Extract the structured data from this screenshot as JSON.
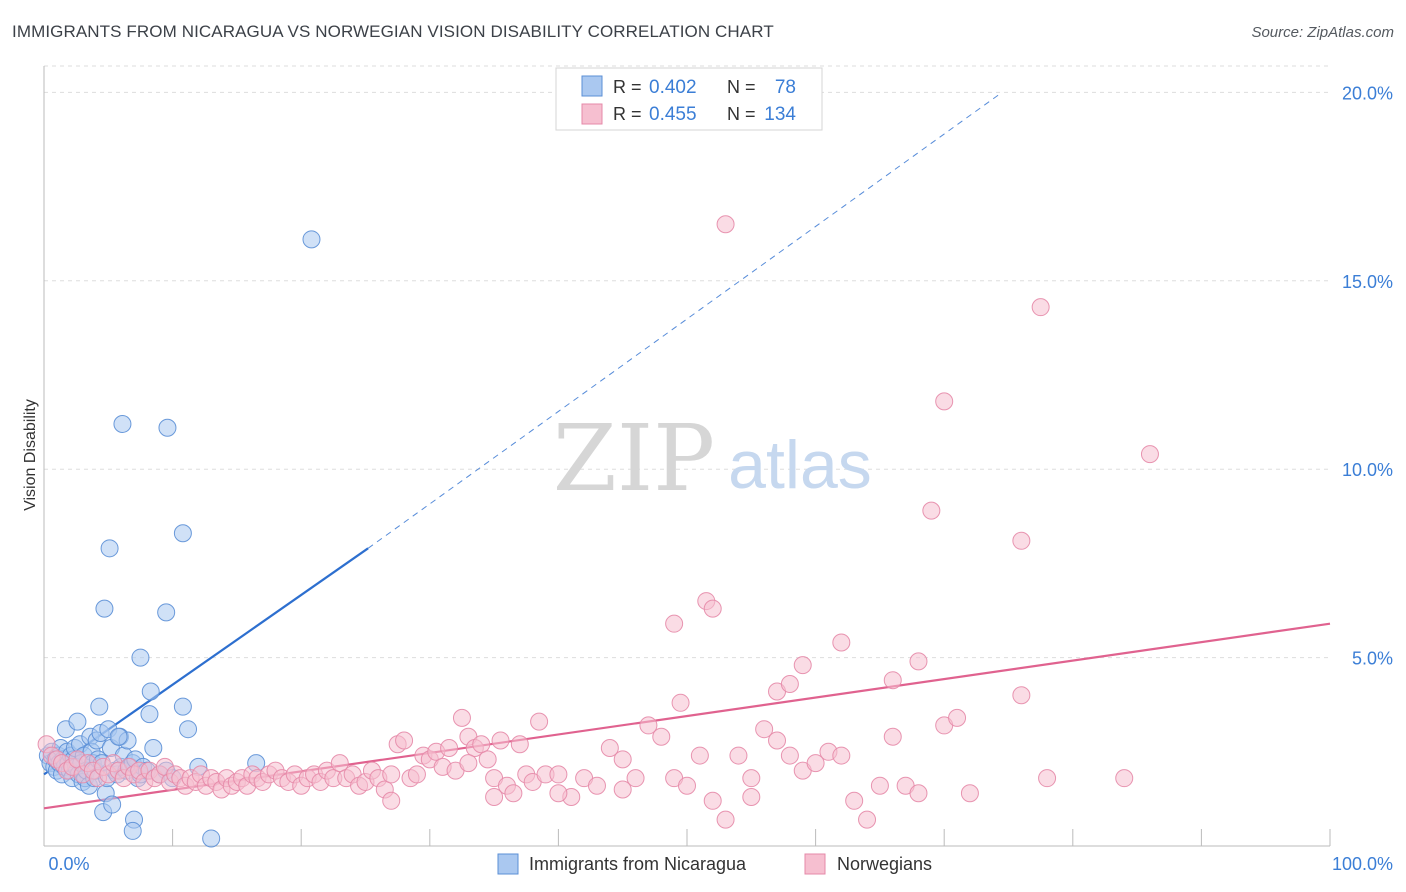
{
  "header": {
    "title": "IMMIGRANTS FROM NICARAGUA VS NORWEGIAN VISION DISABILITY CORRELATION CHART",
    "source": "Source: ZipAtlas.com"
  },
  "watermark": {
    "zip": "ZIP",
    "atlas": "atlas"
  },
  "colors": {
    "blue_fill": "#aac8f0",
    "blue_stroke": "#5b8fd6",
    "blue_line": "#2d6fcf",
    "pink_fill": "#f6bfd0",
    "pink_stroke": "#e589a8",
    "pink_line": "#e0628f",
    "axis_text": "#3b7ed6",
    "grid": "#dddddd"
  },
  "chart_data": {
    "type": "scatter",
    "xlabel": "",
    "ylabel": "Vision Disability",
    "xlim": [
      0,
      100
    ],
    "ylim": [
      0,
      20.7
    ],
    "x_tick_labels": [
      {
        "value": 0,
        "label": "0.0%"
      },
      {
        "value": 100,
        "label": "100.0%"
      }
    ],
    "y_tick_labels": [
      {
        "value": 5,
        "label": "5.0%"
      },
      {
        "value": 10,
        "label": "10.0%"
      },
      {
        "value": 15,
        "label": "15.0%"
      },
      {
        "value": 20,
        "label": "20.0%"
      }
    ],
    "grid": "horizontal dashed",
    "legend_placement": "bottom",
    "stats_placement": "top-center",
    "series": [
      {
        "name": "Immigrants from Nicaragua",
        "color": "#5b8fd6",
        "R": "0.402",
        "N": "78",
        "trendline": {
          "x0": 0,
          "y0": 1.9,
          "x1": 25.2,
          "y1": 7.9,
          "dashed_to_x": 74.5,
          "dashed_to_y": 20.0
        },
        "points": [
          [
            0.3,
            2.4
          ],
          [
            0.5,
            2.2
          ],
          [
            0.6,
            2.5
          ],
          [
            0.8,
            2.1
          ],
          [
            0.9,
            2.3
          ],
          [
            1.0,
            2.0
          ],
          [
            1.1,
            2.4
          ],
          [
            1.2,
            2.2
          ],
          [
            1.3,
            2.6
          ],
          [
            1.4,
            1.9
          ],
          [
            1.5,
            2.3
          ],
          [
            1.6,
            2.1
          ],
          [
            1.7,
            3.1
          ],
          [
            1.8,
            2.5
          ],
          [
            1.9,
            2.2
          ],
          [
            2.0,
            2.0
          ],
          [
            2.1,
            2.4
          ],
          [
            2.2,
            1.8
          ],
          [
            2.3,
            2.3
          ],
          [
            2.4,
            2.6
          ],
          [
            2.5,
            2.1
          ],
          [
            2.6,
            3.3
          ],
          [
            2.7,
            1.9
          ],
          [
            2.8,
            2.7
          ],
          [
            2.9,
            2.2
          ],
          [
            3.0,
            1.7
          ],
          [
            3.1,
            2.4
          ],
          [
            3.2,
            1.8
          ],
          [
            3.3,
            2.0
          ],
          [
            3.5,
            1.6
          ],
          [
            3.6,
            2.9
          ],
          [
            3.7,
            2.5
          ],
          [
            3.8,
            2.2
          ],
          [
            3.9,
            1.8
          ],
          [
            4.0,
            2.0
          ],
          [
            4.1,
            2.8
          ],
          [
            4.2,
            2.3
          ],
          [
            4.3,
            3.7
          ],
          [
            4.4,
            3.0
          ],
          [
            4.5,
            2.2
          ],
          [
            4.6,
            0.9
          ],
          [
            4.8,
            1.4
          ],
          [
            4.9,
            1.8
          ],
          [
            5.0,
            3.1
          ],
          [
            5.2,
            2.6
          ],
          [
            5.3,
            1.1
          ],
          [
            5.5,
            2.0
          ],
          [
            5.7,
            1.9
          ],
          [
            5.9,
            2.9
          ],
          [
            6.0,
            2.1
          ],
          [
            6.2,
            2.4
          ],
          [
            6.4,
            2.0
          ],
          [
            6.5,
            2.8
          ],
          [
            6.7,
            2.1
          ],
          [
            6.9,
            2.2
          ],
          [
            7.1,
            2.3
          ],
          [
            7.3,
            1.8
          ],
          [
            7.5,
            1.9
          ],
          [
            7.7,
            2.1
          ],
          [
            8.0,
            2.0
          ],
          [
            8.2,
            3.5
          ],
          [
            8.5,
            2.6
          ],
          [
            9.0,
            1.9
          ],
          [
            9.5,
            2.0
          ],
          [
            10.0,
            1.8
          ],
          [
            10.8,
            3.7
          ],
          [
            11.2,
            3.1
          ],
          [
            12.0,
            2.1
          ],
          [
            13.0,
            0.2
          ],
          [
            4.7,
            6.3
          ],
          [
            5.1,
            7.9
          ],
          [
            6.1,
            11.2
          ],
          [
            7.5,
            5.0
          ],
          [
            8.3,
            4.1
          ],
          [
            9.5,
            6.2
          ],
          [
            9.6,
            11.1
          ],
          [
            10.8,
            8.3
          ],
          [
            16.5,
            2.2
          ],
          [
            7.0,
            0.7
          ],
          [
            6.9,
            0.4
          ],
          [
            5.8,
            2.9
          ],
          [
            20.8,
            16.1
          ]
        ]
      },
      {
        "name": "Norwegians",
        "color": "#e589a8",
        "R": "0.455",
        "N": "134",
        "trendline": {
          "x0": 0,
          "y0": 1.0,
          "x1": 100,
          "y1": 5.9
        },
        "points": [
          [
            0.2,
            2.7
          ],
          [
            0.6,
            2.4
          ],
          [
            1.0,
            2.3
          ],
          [
            1.4,
            2.2
          ],
          [
            1.8,
            2.0
          ],
          [
            2.2,
            2.1
          ],
          [
            2.6,
            2.3
          ],
          [
            3.0,
            1.9
          ],
          [
            3.4,
            2.2
          ],
          [
            3.8,
            2.0
          ],
          [
            4.2,
            1.8
          ],
          [
            4.6,
            2.1
          ],
          [
            5.0,
            1.9
          ],
          [
            5.4,
            2.2
          ],
          [
            5.8,
            2.0
          ],
          [
            6.2,
            1.8
          ],
          [
            6.6,
            2.1
          ],
          [
            7.0,
            1.9
          ],
          [
            7.4,
            2.0
          ],
          [
            7.8,
            1.7
          ],
          [
            8.2,
            2.0
          ],
          [
            8.6,
            1.8
          ],
          [
            9.0,
            1.9
          ],
          [
            9.4,
            2.1
          ],
          [
            9.8,
            1.7
          ],
          [
            10.2,
            1.9
          ],
          [
            10.6,
            1.8
          ],
          [
            11.0,
            1.6
          ],
          [
            11.4,
            1.8
          ],
          [
            11.8,
            1.7
          ],
          [
            12.2,
            1.9
          ],
          [
            12.6,
            1.6
          ],
          [
            13.0,
            1.8
          ],
          [
            13.4,
            1.7
          ],
          [
            13.8,
            1.5
          ],
          [
            14.2,
            1.8
          ],
          [
            14.6,
            1.6
          ],
          [
            15.0,
            1.7
          ],
          [
            15.4,
            1.8
          ],
          [
            15.8,
            1.6
          ],
          [
            16.2,
            1.9
          ],
          [
            16.6,
            1.8
          ],
          [
            17.0,
            1.7
          ],
          [
            17.5,
            1.9
          ],
          [
            18.0,
            2.0
          ],
          [
            18.5,
            1.8
          ],
          [
            19.0,
            1.7
          ],
          [
            19.5,
            1.9
          ],
          [
            20.0,
            1.6
          ],
          [
            20.5,
            1.8
          ],
          [
            21.0,
            1.9
          ],
          [
            21.5,
            1.7
          ],
          [
            22.0,
            2.0
          ],
          [
            22.5,
            1.8
          ],
          [
            23.0,
            2.2
          ],
          [
            23.5,
            1.8
          ],
          [
            24.0,
            1.9
          ],
          [
            24.5,
            1.6
          ],
          [
            25.0,
            1.7
          ],
          [
            25.5,
            2.0
          ],
          [
            26.0,
            1.8
          ],
          [
            26.5,
            1.5
          ],
          [
            27.0,
            1.9
          ],
          [
            27.5,
            2.7
          ],
          [
            28.0,
            2.8
          ],
          [
            28.5,
            1.8
          ],
          [
            29.0,
            1.9
          ],
          [
            29.5,
            2.4
          ],
          [
            30.0,
            2.3
          ],
          [
            30.5,
            2.5
          ],
          [
            31.0,
            2.1
          ],
          [
            31.5,
            2.6
          ],
          [
            32.0,
            2.0
          ],
          [
            32.5,
            3.4
          ],
          [
            33.0,
            2.9
          ],
          [
            33.5,
            2.6
          ],
          [
            34.0,
            2.7
          ],
          [
            34.5,
            2.3
          ],
          [
            35.0,
            1.8
          ],
          [
            35.5,
            2.8
          ],
          [
            36.0,
            1.6
          ],
          [
            36.5,
            1.4
          ],
          [
            37.0,
            2.7
          ],
          [
            37.5,
            1.9
          ],
          [
            38.0,
            1.7
          ],
          [
            38.5,
            3.3
          ],
          [
            39.0,
            1.9
          ],
          [
            40.0,
            1.9
          ],
          [
            41.0,
            1.3
          ],
          [
            42.0,
            1.8
          ],
          [
            43.0,
            1.6
          ],
          [
            44.0,
            2.6
          ],
          [
            45.0,
            2.3
          ],
          [
            46.0,
            1.8
          ],
          [
            47.0,
            3.2
          ],
          [
            48.0,
            2.9
          ],
          [
            49.0,
            1.8
          ],
          [
            50.0,
            1.6
          ],
          [
            51.0,
            2.4
          ],
          [
            52.0,
            1.2
          ],
          [
            53.0,
            0.7
          ],
          [
            54.0,
            2.4
          ],
          [
            55.0,
            1.8
          ],
          [
            56.0,
            3.1
          ],
          [
            57.0,
            2.8
          ],
          [
            58.0,
            2.4
          ],
          [
            59.0,
            2.0
          ],
          [
            60.0,
            2.2
          ],
          [
            61.0,
            2.5
          ],
          [
            62.0,
            2.4
          ],
          [
            63.0,
            1.2
          ],
          [
            64.0,
            0.7
          ],
          [
            65.0,
            1.6
          ],
          [
            66.0,
            2.9
          ],
          [
            67.0,
            1.6
          ],
          [
            68.0,
            1.4
          ],
          [
            70.0,
            3.2
          ],
          [
            71.0,
            3.4
          ],
          [
            72.0,
            1.4
          ],
          [
            78.0,
            1.8
          ],
          [
            49.5,
            3.8
          ],
          [
            51.5,
            6.5
          ],
          [
            52.0,
            6.3
          ],
          [
            49.0,
            5.9
          ],
          [
            57.0,
            4.1
          ],
          [
            58.0,
            4.3
          ],
          [
            59.0,
            4.8
          ],
          [
            62.0,
            5.4
          ],
          [
            66.0,
            4.4
          ],
          [
            68.0,
            4.9
          ],
          [
            76.0,
            4.0
          ],
          [
            53.0,
            16.5
          ],
          [
            77.5,
            14.3
          ],
          [
            70.0,
            11.8
          ],
          [
            86.0,
            10.4
          ],
          [
            69.0,
            8.9
          ],
          [
            76.0,
            8.1
          ],
          [
            84.0,
            1.8
          ],
          [
            55.0,
            1.3
          ],
          [
            45.0,
            1.5
          ],
          [
            40.0,
            1.4
          ],
          [
            27.0,
            1.2
          ],
          [
            35.0,
            1.3
          ],
          [
            33.0,
            2.2
          ]
        ]
      }
    ]
  },
  "legend": {
    "items": [
      {
        "label": "Immigrants from Nicaragua"
      },
      {
        "label": "Norwegians"
      }
    ]
  },
  "stats": {
    "rows": [
      {
        "r_label": "R =",
        "r_value": "0.402",
        "n_label": "N =",
        "n_value": "78"
      },
      {
        "r_label": "R =",
        "r_value": "0.455",
        "n_label": "N =",
        "n_value": "134"
      }
    ]
  }
}
